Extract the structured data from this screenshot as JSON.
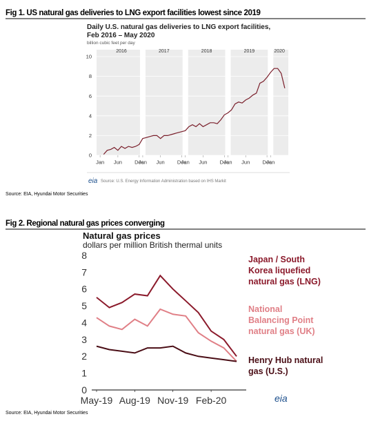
{
  "captions": [
    "Fig 1. US natural gas deliveries to LNG export facilities lowest since 2019",
    "Fig 2. Regional natural gas prices converging"
  ],
  "sources": [
    "Source: EIA, Hyundai Motor Securities",
    "Source: EIA, Hyundai Motor Securities"
  ],
  "chart_data": [
    {
      "type": "line",
      "title": "Daily U.S. natural gas deliveries to LNG export facilities,",
      "subtitle": "Feb 2016 – May 2020",
      "y_label": "billion cubic feet per day",
      "source": "Source: U.S. Energy Information Administration based on IHS Markit",
      "logo": "eia",
      "years": [
        2016,
        2017,
        2018,
        2019,
        2020
      ],
      "x": [
        "2016-02",
        "2016-03",
        "2016-04",
        "2016-05",
        "2016-06",
        "2016-07",
        "2016-08",
        "2016-09",
        "2016-10",
        "2016-11",
        "2016-12",
        "2017-01",
        "2017-02",
        "2017-03",
        "2017-04",
        "2017-05",
        "2017-06",
        "2017-07",
        "2017-08",
        "2017-09",
        "2017-10",
        "2017-11",
        "2017-12",
        "2018-01",
        "2018-02",
        "2018-03",
        "2018-04",
        "2018-05",
        "2018-06",
        "2018-07",
        "2018-08",
        "2018-09",
        "2018-10",
        "2018-11",
        "2018-12",
        "2019-01",
        "2019-02",
        "2019-03",
        "2019-04",
        "2019-05",
        "2019-06",
        "2019-07",
        "2019-08",
        "2019-09",
        "2019-10",
        "2019-11",
        "2019-12",
        "2020-01",
        "2020-02",
        "2020-03",
        "2020-04",
        "2020-05"
      ],
      "series": [
        {
          "color": "#7a1f2b",
          "values": [
            0.1,
            0.5,
            0.6,
            0.8,
            0.5,
            0.9,
            0.7,
            0.9,
            0.8,
            0.9,
            1.1,
            1.7,
            1.8,
            1.9,
            2.0,
            2.0,
            1.7,
            2.0,
            2.0,
            2.1,
            2.2,
            2.3,
            2.4,
            2.5,
            2.9,
            3.1,
            2.9,
            3.2,
            2.9,
            3.1,
            3.3,
            3.3,
            3.2,
            3.6,
            4.1,
            4.3,
            4.6,
            5.2,
            5.4,
            5.3,
            5.6,
            5.8,
            6.1,
            6.3,
            7.3,
            7.5,
            7.9,
            8.4,
            8.8,
            8.8,
            8.3,
            6.8
          ]
        }
      ],
      "xlim": [
        "2015-12",
        "2020-06"
      ],
      "xticks": [
        {
          "value": "2016-01",
          "label": "Jan"
        },
        {
          "value": "2016-06",
          "label": "Jun"
        },
        {
          "value": "2016-12",
          "label": "Dec"
        },
        {
          "value": "2017-01",
          "label": "Jan"
        },
        {
          "value": "2017-06",
          "label": "Jun"
        },
        {
          "value": "2017-12",
          "label": "Dec"
        },
        {
          "value": "2018-01",
          "label": "Jan"
        },
        {
          "value": "2018-06",
          "label": "Jun"
        },
        {
          "value": "2018-12",
          "label": "Dec"
        },
        {
          "value": "2019-01",
          "label": "Jan"
        },
        {
          "value": "2019-06",
          "label": "Jun"
        },
        {
          "value": "2019-12",
          "label": "Dec"
        },
        {
          "value": "2020-01",
          "label": "Jan"
        }
      ],
      "ylim": [
        0,
        10
      ],
      "yticks": [
        0,
        2,
        4,
        6,
        8,
        10
      ],
      "grid": true
    },
    {
      "type": "line",
      "title": "Natural gas prices",
      "subtitle": "dollars per million British thermal units",
      "logo": "eia",
      "x": [
        "2019-05",
        "2019-06",
        "2019-07",
        "2019-08",
        "2019-09",
        "2019-10",
        "2019-11",
        "2019-12",
        "2020-01",
        "2020-02",
        "2020-03",
        "2020-04"
      ],
      "series": [
        {
          "name": "Japan / South Korea liquefied natural gas (LNG)",
          "color": "#8b1a2b",
          "values": [
            5.5,
            4.9,
            5.2,
            5.7,
            5.6,
            6.8,
            6.0,
            5.3,
            4.6,
            3.5,
            3.0,
            2.0
          ]
        },
        {
          "name": "National Balancing Point natural gas (UK)",
          "color": "#e07f86",
          "values": [
            4.3,
            3.8,
            3.6,
            4.2,
            3.8,
            4.8,
            4.5,
            4.4,
            3.4,
            2.9,
            2.5,
            1.7
          ]
        },
        {
          "name": "Henry Hub natural gas (U.S.)",
          "color": "#4a0d15",
          "values": [
            2.6,
            2.4,
            2.3,
            2.2,
            2.5,
            2.5,
            2.6,
            2.2,
            2.0,
            1.9,
            1.8,
            1.7
          ]
        }
      ],
      "xlim": [
        "2019-05",
        "2020-04"
      ],
      "xticks": [
        {
          "value": "2019-05",
          "label": "May-19"
        },
        {
          "value": "2019-08",
          "label": "Aug-19"
        },
        {
          "value": "2019-11",
          "label": "Nov-19"
        },
        {
          "value": "2020-02",
          "label": "Feb-20"
        }
      ],
      "ylim": [
        0,
        8
      ],
      "yticks": [
        0,
        1,
        2,
        3,
        4,
        5,
        6,
        7,
        8
      ],
      "grid": false
    }
  ]
}
